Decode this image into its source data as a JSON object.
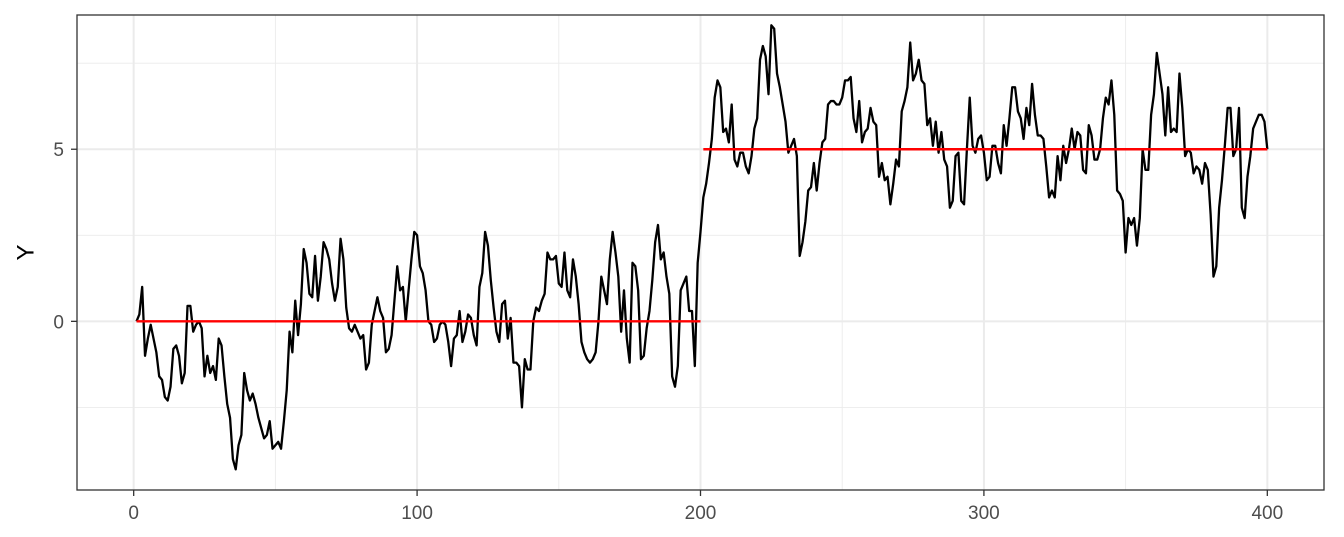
{
  "chart_data": {
    "type": "line",
    "title": "",
    "xlabel": "",
    "ylabel": "Y",
    "xlim": [
      -20,
      420
    ],
    "ylim": [
      -4.9,
      8.9
    ],
    "x_ticks": [
      0,
      100,
      200,
      300,
      400
    ],
    "x_tick_labels": [
      "0",
      "100",
      "200",
      "300",
      "400"
    ],
    "y_ticks": [
      0,
      5
    ],
    "y_tick_labels": [
      "0",
      "5"
    ],
    "grid": true,
    "legend": "none",
    "colors": {
      "series": "#000000",
      "mean": "#ff0000",
      "grid": "#ebebeb",
      "panel_border": "#333333"
    },
    "series": [
      {
        "values": [
          0,
          0.2,
          1.0,
          -1.0,
          -0.5,
          -0.1,
          -0.5,
          -0.9,
          -1.6,
          -1.7,
          -2.2,
          -2.3,
          -1.9,
          -0.8,
          -0.7,
          -1.0,
          -1.8,
          -1.5,
          0.45,
          0.45,
          -0.3,
          -0.1,
          0.0,
          -0.2,
          -1.6,
          -1.0,
          -1.5,
          -1.3,
          -1.7,
          -0.5,
          -0.7,
          -1.6,
          -2.4,
          -2.8,
          -4.0,
          -4.3,
          -3.6,
          -3.3,
          -1.5,
          -2.0,
          -2.3,
          -2.1,
          -2.4,
          -2.8,
          -3.1,
          -3.4,
          -3.3,
          -2.9,
          -3.7,
          -3.6,
          -3.5,
          -3.7,
          -2.9,
          -2.0,
          -0.3,
          -0.9,
          0.6,
          -0.4,
          0.5,
          2.1,
          1.7,
          0.8,
          0.7,
          1.9,
          0.6,
          1.3,
          2.3,
          2.1,
          1.8,
          1.1,
          0.6,
          1.0,
          2.4,
          1.8,
          0.4,
          -0.2,
          -0.3,
          -0.1,
          -0.3,
          -0.5,
          -0.4,
          -1.4,
          -1.2,
          -0.1,
          0.3,
          0.7,
          0.3,
          0.1,
          -0.9,
          -0.8,
          -0.4,
          0.6,
          1.6,
          0.9,
          1.0,
          0.0,
          0.9,
          1.8,
          2.6,
          2.5,
          1.6,
          1.4,
          0.9,
          0.0,
          -0.1,
          -0.6,
          -0.5,
          -0.1,
          0.0,
          -0.1,
          -0.6,
          -1.3,
          -0.5,
          -0.4,
          0.3,
          -0.6,
          -0.3,
          0.2,
          0.1,
          -0.4,
          -0.7,
          1.0,
          1.4,
          2.6,
          2.2,
          1.2,
          0.4,
          -0.3,
          -0.6,
          0.5,
          0.6,
          -0.5,
          0.1,
          -1.2,
          -1.2,
          -1.3,
          -2.5,
          -1.1,
          -1.4,
          -1.4,
          0.0,
          0.4,
          0.3,
          0.6,
          0.8,
          2.0,
          1.8,
          1.8,
          1.9,
          1.1,
          1.0,
          2.0,
          0.9,
          0.7,
          1.8,
          1.3,
          0.5,
          -0.6,
          -0.9,
          -1.1,
          -1.2,
          -1.1,
          -0.9,
          0.0,
          1.3,
          0.9,
          0.5,
          1.8,
          2.6,
          2.0,
          1.3,
          -0.3,
          0.9,
          -0.5,
          -1.2,
          1.7,
          1.6,
          0.9,
          -1.1,
          -1.0,
          -0.2,
          0.3,
          1.2,
          2.3,
          2.8,
          1.8,
          2.0,
          1.3,
          0.8,
          -1.6,
          -1.9,
          -1.3,
          0.9,
          1.1,
          1.3,
          0.3,
          0.3,
          -1.3,
          1.7,
          2.6,
          3.6,
          4.0,
          4.6,
          5.3,
          6.5,
          7.0,
          6.8,
          5.5,
          5.6,
          5.2,
          6.3,
          4.7,
          4.5,
          4.9,
          4.9,
          4.5,
          4.3,
          4.8,
          5.6,
          5.9,
          7.6,
          8.0,
          7.7,
          6.6,
          8.6,
          8.5,
          7.2,
          6.8,
          6.3,
          5.8,
          4.9,
          5.1,
          5.3,
          4.8,
          1.9,
          2.3,
          2.9,
          3.8,
          3.9,
          4.6,
          3.8,
          4.6,
          5.2,
          5.3,
          6.3,
          6.4,
          6.4,
          6.3,
          6.3,
          6.5,
          7.0,
          7.0,
          7.1,
          5.9,
          5.5,
          6.4,
          5.2,
          5.5,
          5.6,
          6.2,
          5.8,
          5.7,
          4.2,
          4.6,
          4.1,
          4.2,
          3.4,
          4.0,
          4.7,
          4.5,
          6.1,
          6.4,
          6.8,
          8.1,
          7.0,
          7.2,
          7.6,
          7.0,
          6.9,
          5.7,
          5.9,
          5.1,
          5.8,
          4.9,
          5.5,
          4.7,
          4.5,
          3.3,
          3.5,
          4.8,
          4.9,
          3.5,
          3.4,
          5.0,
          6.5,
          5.1,
          4.9,
          5.3,
          5.4,
          4.9,
          4.1,
          4.2,
          5.1,
          5.1,
          4.6,
          4.3,
          5.7,
          5.1,
          5.9,
          6.8,
          6.8,
          6.1,
          5.9,
          5.3,
          6.2,
          5.7,
          6.9,
          6.0,
          5.4,
          5.4,
          5.3,
          4.5,
          3.6,
          3.8,
          3.6,
          4.8,
          4.1,
          5.1,
          4.6,
          5.0,
          5.6,
          5.0,
          5.5,
          5.4,
          4.4,
          4.3,
          5.7,
          5.4,
          4.7,
          4.7,
          5.0,
          5.9,
          6.5,
          6.3,
          7.0,
          6.0,
          3.8,
          3.7,
          3.5,
          2.0,
          3.0,
          2.8,
          3.0,
          2.2,
          3.0,
          5.0,
          4.4,
          4.4,
          6.0,
          6.6,
          7.8,
          7.2,
          6.6,
          5.4,
          6.8,
          5.5,
          5.6,
          5.5,
          7.2,
          6.2,
          4.8,
          5.0,
          4.9,
          4.3,
          4.5,
          4.4,
          4.0,
          4.6,
          4.4,
          3.1,
          1.3,
          1.6,
          3.3,
          4.1,
          5.1,
          6.2,
          6.2,
          4.8,
          5.0,
          6.2,
          3.3,
          3.0,
          4.2,
          4.8,
          5.6,
          5.8,
          6.0,
          6.0,
          5.8,
          5.0
        ]
      }
    ],
    "segments": [
      {
        "x_start": 1,
        "x_end": 200,
        "y": 0
      },
      {
        "x_start": 201,
        "x_end": 400,
        "y": 5
      }
    ]
  }
}
